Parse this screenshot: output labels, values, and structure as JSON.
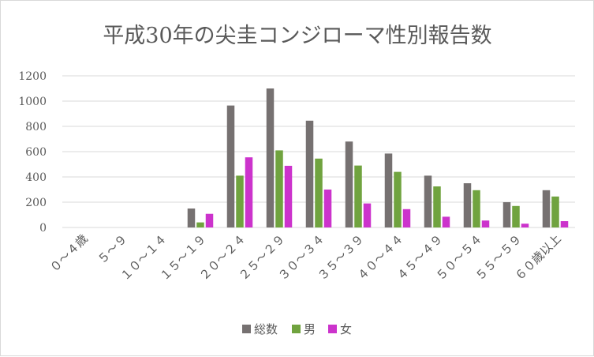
{
  "chart_data": {
    "type": "bar",
    "title": "平成30年の尖圭コンジローマ性別報告数",
    "xlabel": "",
    "ylabel": "",
    "categories": [
      "０～４歳",
      "５～９",
      "１０～１４",
      "１５～１９",
      "２０～２４",
      "２５～２９",
      "３０～３４",
      "３５～３９",
      "４０～４４",
      "４５～４９",
      "５０～５４",
      "５５～５９",
      "６０歳以上"
    ],
    "series": [
      {
        "name": "総数",
        "color": "#767171",
        "values": [
          0,
          0,
          0,
          150,
          965,
          1100,
          845,
          680,
          585,
          410,
          350,
          200,
          295
        ]
      },
      {
        "name": "男",
        "color": "#70a33f",
        "values": [
          0,
          0,
          0,
          40,
          410,
          610,
          545,
          490,
          440,
          325,
          295,
          170,
          245
        ]
      },
      {
        "name": "女",
        "color": "#cc33cc",
        "values": [
          0,
          0,
          0,
          108,
          555,
          488,
          300,
          190,
          145,
          85,
          55,
          30,
          50
        ]
      }
    ],
    "ylim": [
      0,
      1200
    ],
    "yticks": [
      0,
      200,
      400,
      600,
      800,
      1000,
      1200
    ],
    "grid": true,
    "legend_position": "bottom"
  }
}
